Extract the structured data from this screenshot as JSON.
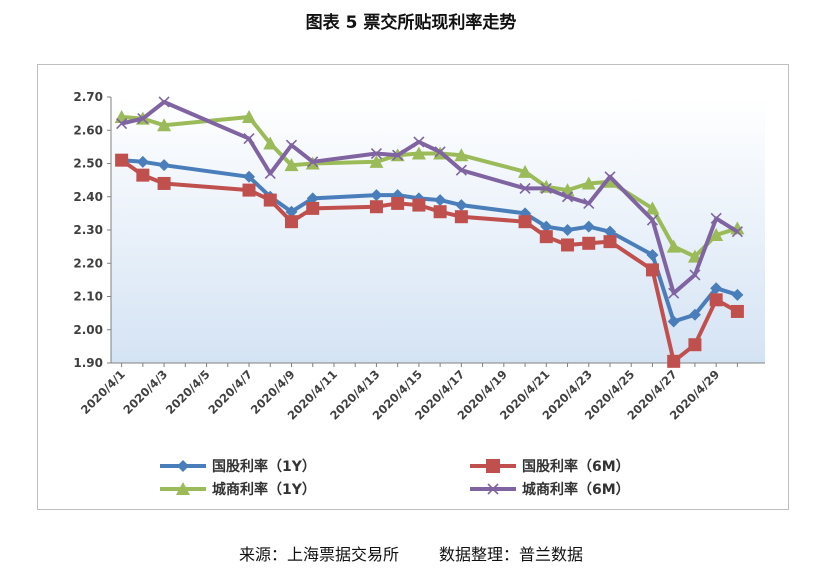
{
  "figure": {
    "title": "图表 5  票交所贴现利率走势",
    "source_label": "来源：上海票据交易所",
    "compiled_label": "数据整理：普兰数据"
  },
  "chart_data": {
    "type": "line",
    "title": "图表 5  票交所贴现利率走势",
    "xlabel": "",
    "ylabel": "",
    "ylim": [
      1.9,
      2.7
    ],
    "yticks": [
      "1.90",
      "2.00",
      "2.10",
      "2.20",
      "2.30",
      "2.40",
      "2.50",
      "2.60",
      "2.70"
    ],
    "grid": false,
    "x_tick_labels": [
      "2020/4/1",
      "2020/4/3",
      "2020/4/5",
      "2020/4/7",
      "2020/4/9",
      "2020/4/11",
      "2020/4/13",
      "2020/4/15",
      "2020/4/17",
      "2020/4/19",
      "2020/4/21",
      "2020/4/23",
      "2020/4/25",
      "2020/4/27",
      "2020/4/29"
    ],
    "legend_position": "bottom",
    "series": [
      {
        "name": "国股利率（1Y）",
        "color": "#4a7ebb",
        "marker": "diamond",
        "points": [
          [
            1,
            2.51
          ],
          [
            2,
            2.505
          ],
          [
            3,
            2.495
          ],
          [
            7,
            2.46
          ],
          [
            8,
            2.4
          ],
          [
            9,
            2.355
          ],
          [
            10,
            2.395
          ],
          [
            13,
            2.405
          ],
          [
            14,
            2.405
          ],
          [
            15,
            2.395
          ],
          [
            16,
            2.39
          ],
          [
            17,
            2.375
          ],
          [
            20,
            2.35
          ],
          [
            21,
            2.31
          ],
          [
            22,
            2.3
          ],
          [
            23,
            2.31
          ],
          [
            24,
            2.295
          ],
          [
            26,
            2.225
          ],
          [
            27,
            2.025
          ],
          [
            28,
            2.045
          ],
          [
            29,
            2.125
          ],
          [
            30,
            2.105
          ]
        ]
      },
      {
        "name": "国股利率（6M）",
        "color": "#c0504d",
        "marker": "square",
        "points": [
          [
            1,
            2.51
          ],
          [
            2,
            2.465
          ],
          [
            3,
            2.44
          ],
          [
            7,
            2.42
          ],
          [
            8,
            2.39
          ],
          [
            9,
            2.325
          ],
          [
            10,
            2.365
          ],
          [
            13,
            2.37
          ],
          [
            14,
            2.38
          ],
          [
            15,
            2.375
          ],
          [
            16,
            2.355
          ],
          [
            17,
            2.34
          ],
          [
            20,
            2.325
          ],
          [
            21,
            2.28
          ],
          [
            22,
            2.255
          ],
          [
            23,
            2.26
          ],
          [
            24,
            2.265
          ],
          [
            26,
            2.18
          ],
          [
            27,
            1.905
          ],
          [
            28,
            1.955
          ],
          [
            29,
            2.09
          ],
          [
            30,
            2.055
          ]
        ]
      },
      {
        "name": "城商利率（1Y）",
        "color": "#9bbb59",
        "marker": "triangle",
        "points": [
          [
            1,
            2.64
          ],
          [
            2,
            2.635
          ],
          [
            3,
            2.615
          ],
          [
            7,
            2.64
          ],
          [
            8,
            2.56
          ],
          [
            9,
            2.495
          ],
          [
            10,
            2.5
          ],
          [
            13,
            2.505
          ],
          [
            14,
            2.525
          ],
          [
            15,
            2.53
          ],
          [
            16,
            2.53
          ],
          [
            17,
            2.525
          ],
          [
            20,
            2.475
          ],
          [
            21,
            2.43
          ],
          [
            22,
            2.42
          ],
          [
            23,
            2.44
          ],
          [
            24,
            2.445
          ],
          [
            26,
            2.365
          ],
          [
            27,
            2.25
          ],
          [
            28,
            2.22
          ],
          [
            29,
            2.285
          ],
          [
            30,
            2.305
          ]
        ]
      },
      {
        "name": "城商利率（6M）",
        "color": "#8064a2",
        "marker": "x",
        "points": [
          [
            1,
            2.62
          ],
          [
            2,
            2.635
          ],
          [
            3,
            2.685
          ],
          [
            7,
            2.575
          ],
          [
            8,
            2.47
          ],
          [
            9,
            2.555
          ],
          [
            10,
            2.505
          ],
          [
            13,
            2.53
          ],
          [
            14,
            2.525
          ],
          [
            15,
            2.565
          ],
          [
            16,
            2.535
          ],
          [
            17,
            2.48
          ],
          [
            20,
            2.425
          ],
          [
            21,
            2.425
          ],
          [
            22,
            2.4
          ],
          [
            23,
            2.38
          ],
          [
            24,
            2.46
          ],
          [
            26,
            2.33
          ],
          [
            27,
            2.11
          ],
          [
            28,
            2.165
          ],
          [
            29,
            2.335
          ],
          [
            30,
            2.295
          ]
        ]
      }
    ]
  }
}
